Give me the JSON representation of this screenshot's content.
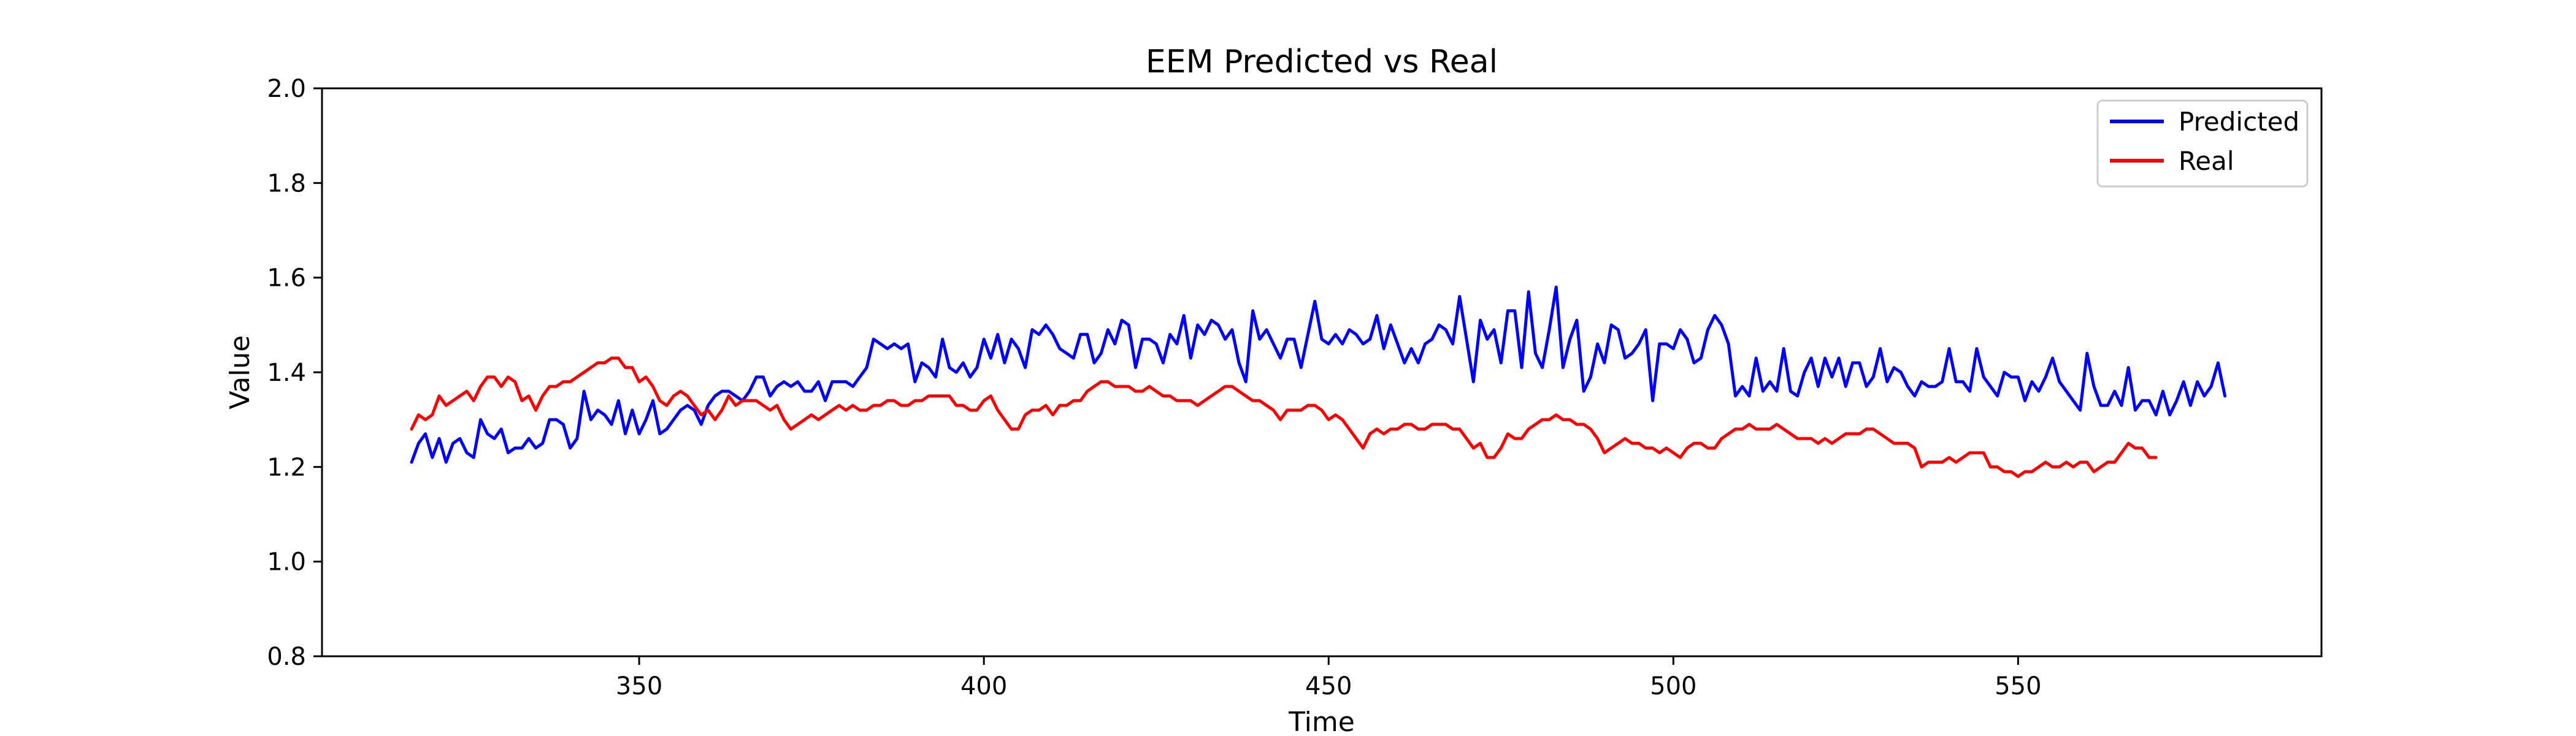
{
  "chart_data": {
    "type": "line",
    "title": "EEM Predicted vs Real",
    "xlabel": "Time",
    "ylabel": "Value",
    "xlim": [
      304,
      594
    ],
    "ylim": [
      0.8,
      2.0
    ],
    "x_ticks": [
      350,
      400,
      450,
      500,
      550
    ],
    "y_ticks": [
      0.8,
      1.0,
      1.2,
      1.4,
      1.6,
      1.8,
      2.0
    ],
    "y_tick_labels": [
      "0.8",
      "1.0",
      "1.2",
      "1.4",
      "1.6",
      "1.8",
      "2.0"
    ],
    "grid": false,
    "legend_position": "top-right",
    "x_start": 317,
    "series": [
      {
        "name": "Predicted",
        "color": "#0000ff",
        "values": [
          1.21,
          1.25,
          1.27,
          1.22,
          1.26,
          1.21,
          1.25,
          1.26,
          1.23,
          1.22,
          1.3,
          1.27,
          1.26,
          1.28,
          1.23,
          1.24,
          1.24,
          1.26,
          1.24,
          1.25,
          1.3,
          1.3,
          1.29,
          1.24,
          1.26,
          1.36,
          1.3,
          1.32,
          1.31,
          1.29,
          1.34,
          1.27,
          1.32,
          1.27,
          1.3,
          1.34,
          1.27,
          1.28,
          1.3,
          1.32,
          1.33,
          1.32,
          1.29,
          1.33,
          1.35,
          1.36,
          1.36,
          1.35,
          1.34,
          1.36,
          1.39,
          1.39,
          1.35,
          1.37,
          1.38,
          1.37,
          1.38,
          1.36,
          1.36,
          1.38,
          1.34,
          1.38,
          1.38,
          1.38,
          1.37,
          1.39,
          1.41,
          1.47,
          1.46,
          1.45,
          1.46,
          1.45,
          1.46,
          1.38,
          1.42,
          1.41,
          1.39,
          1.47,
          1.41,
          1.4,
          1.42,
          1.39,
          1.41,
          1.47,
          1.43,
          1.48,
          1.42,
          1.47,
          1.45,
          1.41,
          1.49,
          1.48,
          1.5,
          1.48,
          1.45,
          1.44,
          1.43,
          1.48,
          1.48,
          1.42,
          1.44,
          1.49,
          1.46,
          1.51,
          1.5,
          1.41,
          1.47,
          1.47,
          1.46,
          1.42,
          1.48,
          1.46,
          1.52,
          1.43,
          1.5,
          1.48,
          1.51,
          1.5,
          1.47,
          1.49,
          1.42,
          1.38,
          1.53,
          1.47,
          1.49,
          1.46,
          1.43,
          1.47,
          1.47,
          1.41,
          1.48,
          1.55,
          1.47,
          1.46,
          1.48,
          1.46,
          1.49,
          1.48,
          1.46,
          1.47,
          1.52,
          1.45,
          1.5,
          1.46,
          1.42,
          1.45,
          1.42,
          1.46,
          1.47,
          1.5,
          1.49,
          1.46,
          1.56,
          1.47,
          1.38,
          1.51,
          1.47,
          1.49,
          1.42,
          1.53,
          1.53,
          1.41,
          1.57,
          1.44,
          1.41,
          1.49,
          1.58,
          1.41,
          1.47,
          1.51,
          1.36,
          1.39,
          1.46,
          1.42,
          1.5,
          1.49,
          1.43,
          1.44,
          1.46,
          1.49,
          1.34,
          1.46,
          1.46,
          1.45,
          1.49,
          1.47,
          1.42,
          1.43,
          1.49,
          1.52,
          1.5,
          1.46,
          1.35,
          1.37,
          1.35,
          1.43,
          1.36,
          1.38,
          1.36,
          1.45,
          1.36,
          1.35,
          1.4,
          1.43,
          1.37,
          1.43,
          1.39,
          1.43,
          1.37,
          1.42,
          1.42,
          1.37,
          1.39,
          1.45,
          1.38,
          1.41,
          1.4,
          1.37,
          1.35,
          1.38,
          1.37,
          1.37,
          1.38,
          1.45,
          1.38,
          1.38,
          1.36,
          1.45,
          1.39,
          1.37,
          1.35,
          1.4,
          1.39,
          1.39,
          1.34,
          1.38,
          1.36,
          1.39,
          1.43,
          1.38,
          1.36,
          1.34,
          1.32,
          1.44,
          1.37,
          1.33,
          1.33,
          1.36,
          1.33,
          1.41,
          1.32,
          1.34,
          1.34,
          1.31,
          1.36,
          1.31,
          1.34,
          1.38,
          1.33,
          1.38,
          1.35,
          1.37,
          1.42,
          1.35
        ]
      },
      {
        "name": "Real",
        "color": "#ff0000",
        "values": [
          1.28,
          1.31,
          1.3,
          1.31,
          1.35,
          1.33,
          1.34,
          1.35,
          1.36,
          1.34,
          1.37,
          1.39,
          1.39,
          1.37,
          1.39,
          1.38,
          1.34,
          1.35,
          1.32,
          1.35,
          1.37,
          1.37,
          1.38,
          1.38,
          1.39,
          1.4,
          1.41,
          1.42,
          1.42,
          1.43,
          1.43,
          1.41,
          1.41,
          1.38,
          1.39,
          1.37,
          1.34,
          1.33,
          1.35,
          1.36,
          1.35,
          1.33,
          1.31,
          1.32,
          1.3,
          1.32,
          1.35,
          1.33,
          1.34,
          1.34,
          1.34,
          1.33,
          1.32,
          1.33,
          1.3,
          1.28,
          1.29,
          1.3,
          1.31,
          1.3,
          1.31,
          1.32,
          1.33,
          1.32,
          1.33,
          1.32,
          1.32,
          1.33,
          1.33,
          1.34,
          1.34,
          1.33,
          1.33,
          1.34,
          1.34,
          1.35,
          1.35,
          1.35,
          1.35,
          1.33,
          1.33,
          1.32,
          1.32,
          1.34,
          1.35,
          1.32,
          1.3,
          1.28,
          1.28,
          1.31,
          1.32,
          1.32,
          1.33,
          1.31,
          1.33,
          1.33,
          1.34,
          1.34,
          1.36,
          1.37,
          1.38,
          1.38,
          1.37,
          1.37,
          1.37,
          1.36,
          1.36,
          1.37,
          1.36,
          1.35,
          1.35,
          1.34,
          1.34,
          1.34,
          1.33,
          1.34,
          1.35,
          1.36,
          1.37,
          1.37,
          1.36,
          1.35,
          1.34,
          1.34,
          1.33,
          1.32,
          1.3,
          1.32,
          1.32,
          1.32,
          1.33,
          1.33,
          1.32,
          1.3,
          1.31,
          1.3,
          1.28,
          1.26,
          1.24,
          1.27,
          1.28,
          1.27,
          1.28,
          1.28,
          1.29,
          1.29,
          1.28,
          1.28,
          1.29,
          1.29,
          1.29,
          1.28,
          1.28,
          1.26,
          1.24,
          1.25,
          1.22,
          1.22,
          1.24,
          1.27,
          1.26,
          1.26,
          1.28,
          1.29,
          1.3,
          1.3,
          1.31,
          1.3,
          1.3,
          1.29,
          1.29,
          1.28,
          1.26,
          1.23,
          1.24,
          1.25,
          1.26,
          1.25,
          1.25,
          1.24,
          1.24,
          1.23,
          1.24,
          1.23,
          1.22,
          1.24,
          1.25,
          1.25,
          1.24,
          1.24,
          1.26,
          1.27,
          1.28,
          1.28,
          1.29,
          1.28,
          1.28,
          1.28,
          1.29,
          1.28,
          1.27,
          1.26,
          1.26,
          1.26,
          1.25,
          1.26,
          1.25,
          1.26,
          1.27,
          1.27,
          1.27,
          1.28,
          1.28,
          1.27,
          1.26,
          1.25,
          1.25,
          1.25,
          1.24,
          1.2,
          1.21,
          1.21,
          1.21,
          1.22,
          1.21,
          1.22,
          1.23,
          1.23,
          1.23,
          1.2,
          1.2,
          1.19,
          1.19,
          1.18,
          1.19,
          1.19,
          1.2,
          1.21,
          1.2,
          1.2,
          1.21,
          1.2,
          1.21,
          1.21,
          1.19,
          1.2,
          1.21,
          1.21,
          1.23,
          1.25,
          1.24,
          1.24,
          1.22,
          1.22
        ]
      }
    ]
  }
}
